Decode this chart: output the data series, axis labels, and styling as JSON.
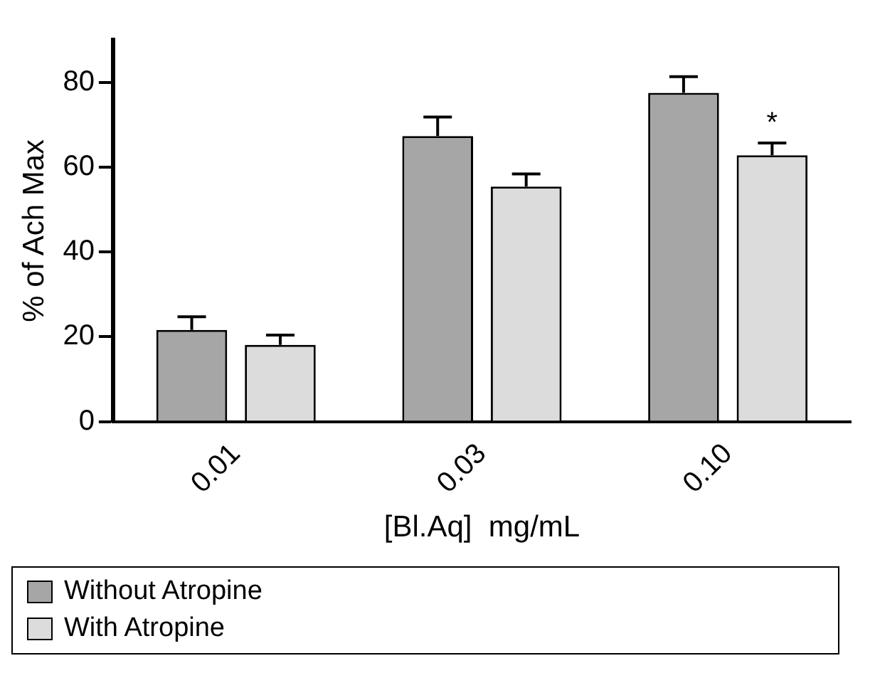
{
  "chart_data": {
    "type": "bar",
    "xlabel": "[Bl.Aq]  mg/mL",
    "ylabel": "% of Ach Max",
    "categories": [
      "0.01",
      "0.03",
      "0.10"
    ],
    "series": [
      {
        "name": "Without Atropine",
        "color": "#a6a6a6",
        "values": [
          21.6,
          67.3,
          77.5
        ],
        "errors": [
          3.1,
          4.5,
          3.8
        ]
      },
      {
        "name": "With Atropine",
        "color": "#dcdcdc",
        "values": [
          18.1,
          55.4,
          62.8
        ],
        "errors": [
          2.3,
          3.0,
          2.9
        ]
      }
    ],
    "annotations": [
      "*"
    ],
    "ylim": [
      0,
      90
    ],
    "yticks": [
      0,
      20,
      40,
      60,
      80
    ],
    "grid": false,
    "legend": "bottom"
  }
}
